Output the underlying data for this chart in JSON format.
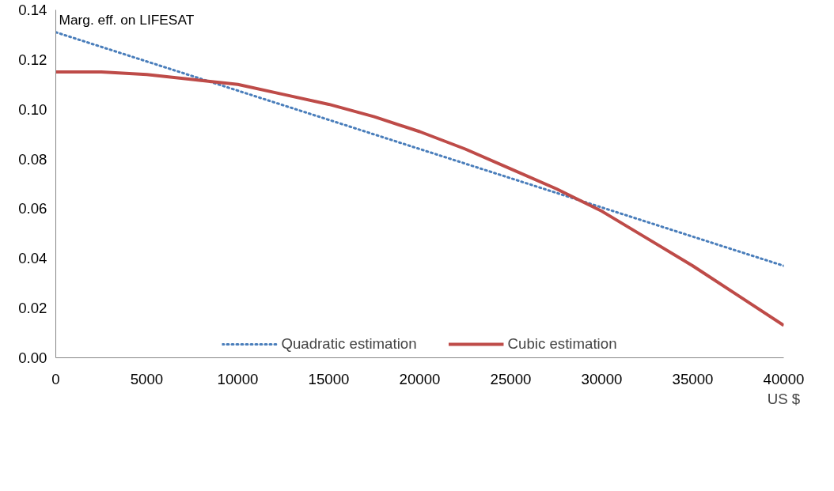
{
  "chart_data": {
    "type": "line",
    "ylabel": "Marg. eff. on LIFESAT",
    "xlabel": "US $",
    "x": [
      0,
      2500,
      5000,
      7500,
      10000,
      12500,
      15000,
      17500,
      20000,
      22500,
      25000,
      27500,
      30000,
      32500,
      35000,
      37500,
      40000
    ],
    "series": [
      {
        "name": "Quadratic estimation",
        "color": "#4a7ebb",
        "line_style": "dotted",
        "x": [
          0,
          40000
        ],
        "values": [
          0.131,
          0.037
        ]
      },
      {
        "name": "Cubic estimation",
        "color": "#be4b48",
        "line_style": "solid",
        "values": [
          0.115,
          0.115,
          0.114,
          0.112,
          0.11,
          0.106,
          0.102,
          0.097,
          0.091,
          0.084,
          0.076,
          0.068,
          0.059,
          0.048,
          0.037,
          0.025,
          0.013
        ]
      }
    ],
    "xlim": [
      0,
      40000
    ],
    "ylim": [
      0,
      0.14
    ],
    "xticks": [
      0,
      5000,
      10000,
      15000,
      20000,
      25000,
      30000,
      35000,
      40000
    ],
    "yticks": [
      {
        "value": 0,
        "label": "0.00"
      },
      {
        "value": 0.02,
        "label": "0.02"
      },
      {
        "value": 0.04,
        "label": "0.04"
      },
      {
        "value": 0.06,
        "label": "0.06"
      },
      {
        "value": 0.08,
        "label": "0.08"
      },
      {
        "value": 0.1,
        "label": "0.10"
      },
      {
        "value": 0.12,
        "label": "0.12"
      },
      {
        "value": 0.14,
        "label": "0.14"
      }
    ],
    "grid": false,
    "legend": "bottom",
    "marker": "none"
  }
}
